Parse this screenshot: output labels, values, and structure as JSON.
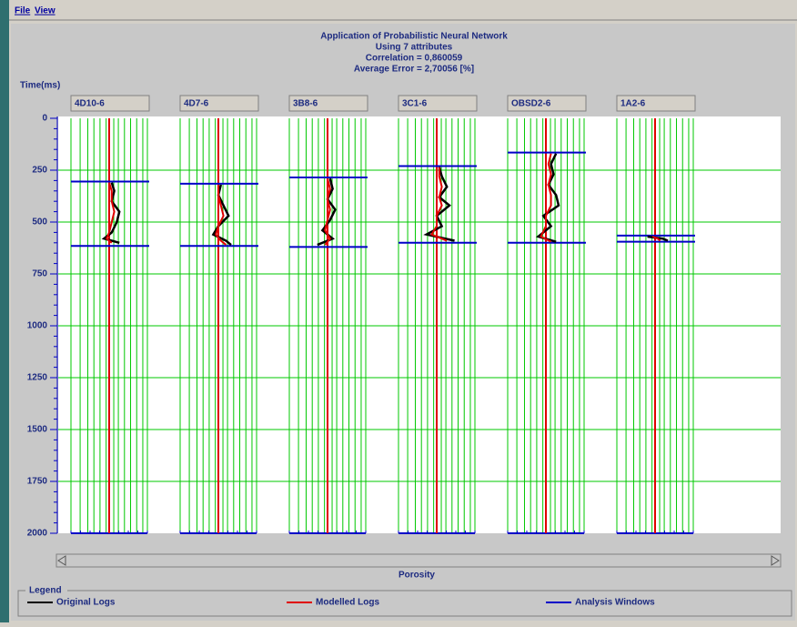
{
  "menu": [
    "File",
    "View"
  ],
  "chart_data": {
    "type": "well-logs",
    "title": [
      "Application of Probabilistic Neural Network",
      "Using 7 attributes",
      "Correlation = 0,860059",
      "Average Error = 2,70056 [%]"
    ],
    "y_label": "Time(ms)",
    "x_label": "Porosity",
    "ylim": [
      0,
      2000
    ],
    "yticks": [
      0,
      250,
      500,
      750,
      1000,
      1250,
      1500,
      1750,
      2000
    ],
    "xlim": [
      0,
      0.3
    ],
    "grid": true,
    "wells": [
      {
        "name": "4D10-6",
        "window": [
          305,
          615
        ],
        "times": [
          310,
          350,
          400,
          450,
          500,
          550,
          580,
          600
        ],
        "original": [
          0.16,
          0.17,
          0.16,
          0.19,
          0.18,
          0.16,
          0.13,
          0.19
        ],
        "modelled": [
          0.15,
          0.16,
          0.16,
          0.17,
          0.16,
          0.15,
          0.14,
          0.16
        ]
      },
      {
        "name": "4D7-6",
        "window": [
          315,
          615
        ],
        "times": [
          320,
          370,
          420,
          470,
          520,
          560,
          590,
          610
        ],
        "original": [
          0.16,
          0.15,
          0.17,
          0.19,
          0.15,
          0.13,
          0.18,
          0.2
        ],
        "modelled": [
          0.15,
          0.15,
          0.16,
          0.17,
          0.15,
          0.14,
          0.16,
          0.18
        ]
      },
      {
        "name": "3B8-6",
        "window": [
          285,
          620
        ],
        "times": [
          290,
          340,
          390,
          440,
          490,
          540,
          580,
          610
        ],
        "original": [
          0.16,
          0.17,
          0.15,
          0.18,
          0.16,
          0.13,
          0.17,
          0.11
        ],
        "modelled": [
          0.15,
          0.16,
          0.15,
          0.16,
          0.15,
          0.14,
          0.16,
          0.14
        ]
      },
      {
        "name": "3C1-6",
        "window": [
          230,
          600
        ],
        "times": [
          235,
          280,
          330,
          380,
          420,
          470,
          520,
          560,
          590
        ],
        "original": [
          0.16,
          0.17,
          0.19,
          0.16,
          0.2,
          0.15,
          0.17,
          0.11,
          0.22
        ],
        "modelled": [
          0.16,
          0.16,
          0.17,
          0.16,
          0.17,
          0.15,
          0.15,
          0.13,
          0.19
        ]
      },
      {
        "name": "OBSD2-6",
        "window": [
          165,
          600
        ],
        "times": [
          170,
          220,
          270,
          320,
          370,
          420,
          470,
          520,
          570,
          595
        ],
        "original": [
          0.19,
          0.17,
          0.18,
          0.16,
          0.19,
          0.2,
          0.14,
          0.17,
          0.12,
          0.19
        ],
        "modelled": [
          0.17,
          0.16,
          0.17,
          0.16,
          0.17,
          0.17,
          0.15,
          0.15,
          0.13,
          0.17
        ]
      },
      {
        "name": "1A2-6",
        "window": [
          565,
          595
        ],
        "times": [
          570,
          580,
          590
        ],
        "original": [
          0.12,
          0.18,
          0.2
        ],
        "modelled": [
          0.14,
          0.16,
          0.17
        ]
      }
    ],
    "legend": {
      "title": "Legend",
      "entries": [
        {
          "name": "Original Logs",
          "color": "#000000"
        },
        {
          "name": "Modelled Logs",
          "color": "#e00000"
        },
        {
          "name": "Analysis Windows",
          "color": "#0000c8"
        }
      ]
    },
    "grid_color": "#00c800"
  }
}
